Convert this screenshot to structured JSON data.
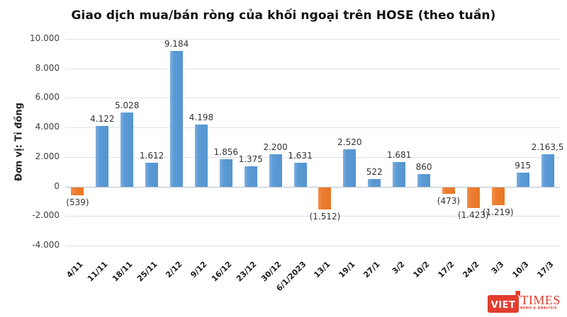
{
  "title": "Giao dịch mua/bán ròng của khối ngoại trên HOSE (theo tuần)",
  "y_axis_title": "Đơn vị: Tỉ đồng",
  "logo": {
    "name": "viettimes-logo",
    "viet": "VIET",
    "times": "TIMES",
    "tagline": "NEWS & ANALYSIS",
    "red": "#e23d2e"
  },
  "chart_data": {
    "type": "bar",
    "title": "Giao dịch mua/bán ròng của khối ngoại trên HOSE (theo tuần)",
    "ylabel": "Đơn vị: Tỉ đồng",
    "xlabel": "",
    "categories": [
      "4/11",
      "11/11",
      "18/11",
      "25/11",
      "2/12",
      "9/12",
      "16/12",
      "23/12",
      "30/12",
      "6/1/2023",
      "13/1",
      "19/1",
      "27/1",
      "3/2",
      "10/2",
      "17/2",
      "24/2",
      "3/3",
      "10/3",
      "17/3"
    ],
    "values": [
      -539,
      4122,
      5028,
      1612,
      9184,
      4198,
      1856,
      1375,
      2200,
      1631,
      -1512,
      2520,
      522,
      1681,
      860,
      -473,
      -1423,
      -1219,
      915,
      2163.5
    ],
    "value_labels": [
      "(539)",
      "4.122",
      "5.028",
      "1.612",
      "9.184",
      "4.198",
      "1.856",
      "1.375",
      "2.200",
      "1.631",
      "(1.512)",
      "2.520",
      "522",
      "1.681",
      "860",
      "(473)",
      "(1.423)",
      "(1.219)",
      "915",
      "2.163,5"
    ],
    "ylim": [
      -4000,
      10000
    ],
    "y_ticks": [
      {
        "value": 10000,
        "label": "10.000"
      },
      {
        "value": 8000,
        "label": "8.000"
      },
      {
        "value": 6000,
        "label": "6.000"
      },
      {
        "value": 4000,
        "label": "4.000"
      },
      {
        "value": 2000,
        "label": "2.000"
      },
      {
        "value": 0,
        "label": "0"
      },
      {
        "value": -2000,
        "label": "-2.000"
      },
      {
        "value": -4000,
        "label": "-4.000"
      }
    ],
    "grid": true,
    "legend": false,
    "positive_color": "#5b9bd5",
    "negative_color": "#ed7d31",
    "gridline_color": "#dbe2ec"
  }
}
